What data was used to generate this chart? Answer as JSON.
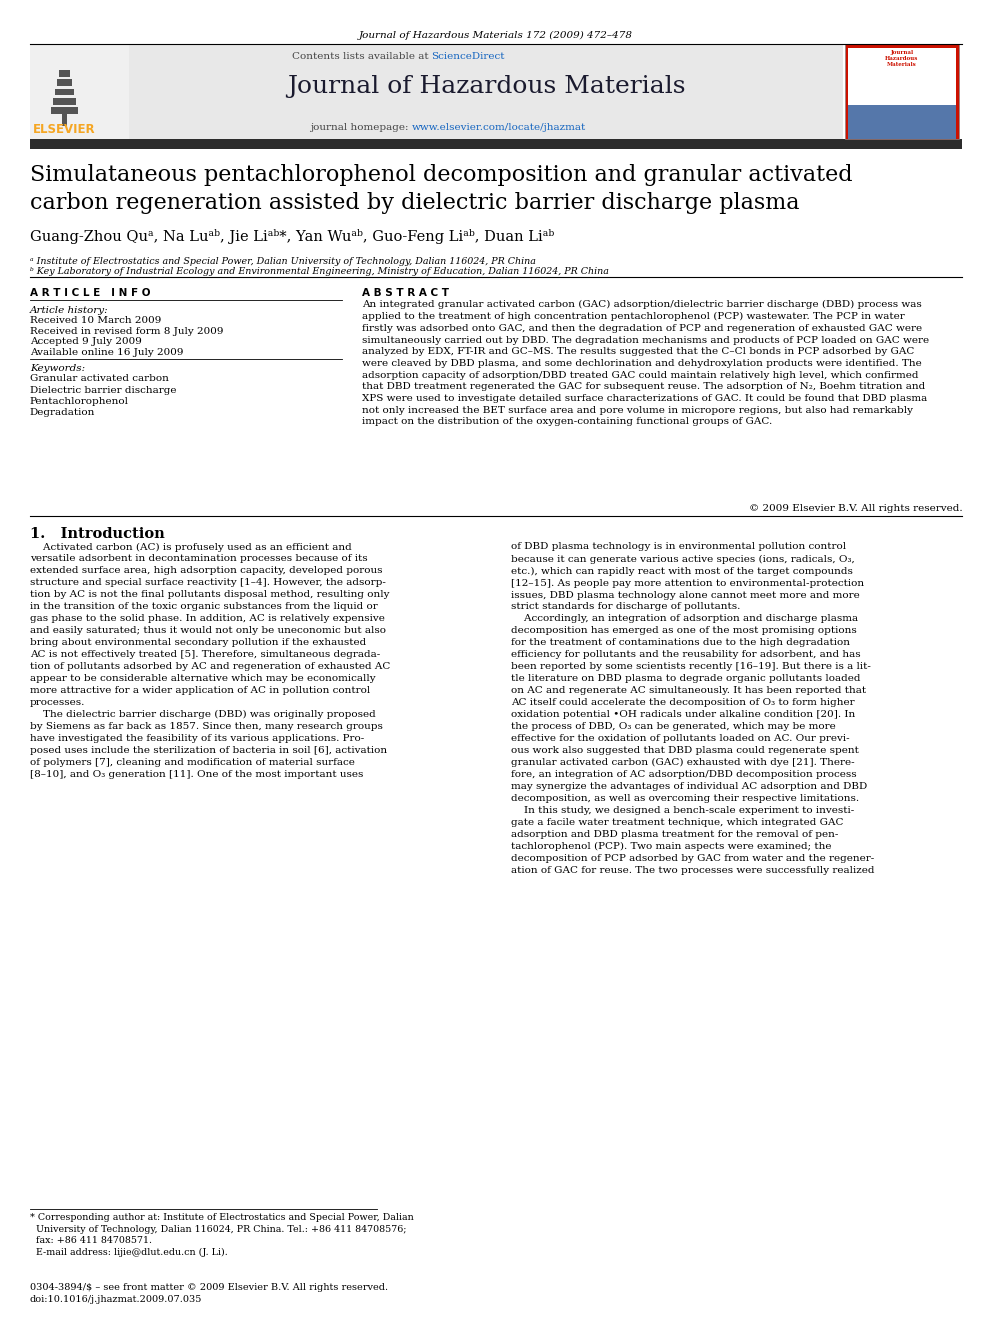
{
  "page_width": 9.92,
  "page_height": 13.23,
  "background_color": "#ffffff",
  "header_journal_ref": "Journal of Hazardous Materials 172 (2009) 472–478",
  "header_bar_color": "#2c2c2c",
  "journal_banner_bg": "#e8e8e8",
  "banner_text_contents_list": "Contents lists available at ",
  "banner_sciencedirect_color": "#1565c0",
  "banner_sciencedirect": "ScienceDirect",
  "banner_journal_title": "Journal of Hazardous Materials",
  "banner_journal_title_color": "#1a1a2e",
  "banner_homepage_text": "journal homepage: ",
  "banner_homepage_url": "www.elsevier.com/locate/jhazmat",
  "banner_homepage_url_color": "#1565c0",
  "elsevier_logo_color": "#f5a623",
  "elsevier_text": "ELSEVIER",
  "article_title": "Simulataneous pentachlorophenol decomposition and granular activated\ncarbon regeneration assisted by dielectric barrier discharge plasma",
  "article_title_color": "#000000",
  "authors": "Guang-Zhou Quᵃ, Na Luᵃᵇ, Jie Liᵃᵇ*, Yan Wuᵃᵇ, Guo-Feng Liᵃᵇ, Duan Liᵃᵇ",
  "affil_a": "ᵃ Institute of Electrostatics and Special Power, Dalian University of Technology, Dalian 116024, PR China",
  "affil_b": "ᵇ Key Laboratory of Industrial Ecology and Environmental Engineering, Ministry of Education, Dalian 116024, PR China",
  "article_info_title": "A R T I C L E   I N F O",
  "abstract_title": "A B S T R A C T",
  "article_history_label": "Article history:",
  "received": "Received 10 March 2009",
  "received_revised": "Received in revised form 8 July 2009",
  "accepted": "Accepted 9 July 2009",
  "available_online": "Available online 16 July 2009",
  "keywords_label": "Keywords:",
  "keywords": [
    "Granular activated carbon",
    "Dielectric barrier discharge",
    "Pentachlorophenol",
    "Degradation"
  ],
  "abstract_text": "An integrated granular activated carbon (GAC) adsorption/dielectric barrier discharge (DBD) process was\napplied to the treatment of high concentration pentachlorophenol (PCP) wastewater. The PCP in water\nfirstly was adsorbed onto GAC, and then the degradation of PCP and regeneration of exhausted GAC were\nsimultaneously carried out by DBD. The degradation mechanisms and products of PCP loaded on GAC were\nanalyzed by EDX, FT-IR and GC–MS. The results suggested that the C–Cl bonds in PCP adsorbed by GAC\nwere cleaved by DBD plasma, and some dechlorination and dehydroxylation products were identified. The\nadsorption capacity of adsorption/DBD treated GAC could maintain relatively high level, which confirmed\nthat DBD treatment regenerated the GAC for subsequent reuse. The adsorption of N₂, Boehm titration and\nXPS were used to investigate detailed surface characterizations of GAC. It could be found that DBD plasma\nnot only increased the BET surface area and pore volume in micropore regions, but also had remarkably\nimpact on the distribution of the oxygen-containing functional groups of GAC.",
  "copyright": "© 2009 Elsevier B.V. All rights reserved.",
  "section1_title": "1.   Introduction",
  "intro_col1": "    Activated carbon (AC) is profusely used as an efficient and\nversatile adsorbent in decontamination processes because of its\nextended surface area, high adsorption capacity, developed porous\nstructure and special surface reactivity [1–4]. However, the adsorp-\ntion by AC is not the final pollutants disposal method, resulting only\nin the transition of the toxic organic substances from the liquid or\ngas phase to the solid phase. In addition, AC is relatively expensive\nand easily saturated; thus it would not only be uneconomic but also\nbring about environmental secondary pollution if the exhausted\nAC is not effectively treated [5]. Therefore, simultaneous degrada-\ntion of pollutants adsorbed by AC and regeneration of exhausted AC\nappear to be considerable alternative which may be economically\nmore attractive for a wider application of AC in pollution control\nprocesses.\n    The dielectric barrier discharge (DBD) was originally proposed\nby Siemens as far back as 1857. Since then, many research groups\nhave investigated the feasibility of its various applications. Pro-\nposed uses include the sterilization of bacteria in soil [6], activation\nof polymers [7], cleaning and modification of material surface\n[8–10], and O₃ generation [11]. One of the most important uses",
  "intro_col2": "of DBD plasma technology is in environmental pollution control\nbecause it can generate various active species (ions, radicals, O₃,\netc.), which can rapidly react with most of the target compounds\n[12–15]. As people pay more attention to environmental-protection\nissues, DBD plasma technology alone cannot meet more and more\nstrict standards for discharge of pollutants.\n    Accordingly, an integration of adsorption and discharge plasma\ndecomposition has emerged as one of the most promising options\nfor the treatment of contaminations due to the high degradation\nefficiency for pollutants and the reusability for adsorbent, and has\nbeen reported by some scientists recently [16–19]. But there is a lit-\ntle literature on DBD plasma to degrade organic pollutants loaded\non AC and regenerate AC simultaneously. It has been reported that\nAC itself could accelerate the decomposition of O₃ to form higher\noxidation potential •OH radicals under alkaline condition [20]. In\nthe process of DBD, O₃ can be generated, which may be more\neffective for the oxidation of pollutants loaded on AC. Our previ-\nous work also suggested that DBD plasma could regenerate spent\ngranular activated carbon (GAC) exhausted with dye [21]. There-\nfore, an integration of AC adsorption/DBD decomposition process\nmay synergize the advantages of individual AC adsorption and DBD\ndecomposition, as well as overcoming their respective limitations.\n    In this study, we designed a bench-scale experiment to investi-\ngate a facile water treatment technique, which integrated GAC\nadsorption and DBD plasma treatment for the removal of pen-\ntachlorophenol (PCP). Two main aspects were examined; the\ndecomposition of PCP adsorbed by GAC from water and the regener-\nation of GAC for reuse. The two processes were successfully realized",
  "footnote_text": "* Corresponding author at: Institute of Electrostatics and Special Power, Dalian\n  University of Technology, Dalian 116024, PR China. Tel.: +86 411 84708576;\n  fax: +86 411 84708571.\n  E-mail address: lijie@dlut.edu.cn (J. Li).",
  "bottom_text": "0304-3894/$ – see front matter © 2009 Elsevier B.V. All rights reserved.\ndoi:10.1016/j.jhazmat.2009.07.035"
}
